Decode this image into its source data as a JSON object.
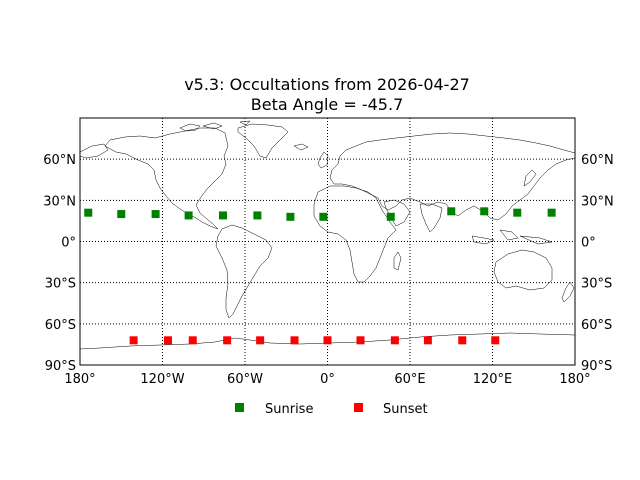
{
  "chart_data": {
    "type": "scatter",
    "title": "v5.3: Occultations from 2026-04-27",
    "subtitle": "Beta Angle = -45.7",
    "projection": "cylindrical",
    "xlim": [
      -180,
      180
    ],
    "ylim": [
      -90,
      90
    ],
    "grid": true,
    "grid_style": "dotted",
    "legend_position": "bottom-center",
    "x_ticks": [
      {
        "value": -180,
        "label": "180°"
      },
      {
        "value": -120,
        "label": "120°W"
      },
      {
        "value": -60,
        "label": "60°W"
      },
      {
        "value": 0,
        "label": "0°"
      },
      {
        "value": 60,
        "label": "60°E"
      },
      {
        "value": 120,
        "label": "120°E"
      },
      {
        "value": 180,
        "label": "180°"
      }
    ],
    "y_ticks": [
      {
        "value": 60,
        "label": "60°N"
      },
      {
        "value": 30,
        "label": "30°N"
      },
      {
        "value": 0,
        "label": "0°"
      },
      {
        "value": -30,
        "label": "30°S"
      },
      {
        "value": -60,
        "label": "60°S"
      },
      {
        "value": -90,
        "label": "90°S"
      }
    ],
    "series": [
      {
        "name": "Sunrise",
        "color": "#008000",
        "marker": "square",
        "points": [
          {
            "lon": -174,
            "lat": 21
          },
          {
            "lon": -150,
            "lat": 20
          },
          {
            "lon": -125,
            "lat": 20
          },
          {
            "lon": -101,
            "lat": 19
          },
          {
            "lon": -76,
            "lat": 19
          },
          {
            "lon": -51,
            "lat": 19
          },
          {
            "lon": -27,
            "lat": 18
          },
          {
            "lon": -3,
            "lat": 18
          },
          {
            "lon": 46,
            "lat": 18
          },
          {
            "lon": 90,
            "lat": 22
          },
          {
            "lon": 114,
            "lat": 22
          },
          {
            "lon": 138,
            "lat": 21
          },
          {
            "lon": 163,
            "lat": 21
          }
        ]
      },
      {
        "name": "Sunset",
        "color": "#ff0000",
        "marker": "square",
        "points": [
          {
            "lon": -141,
            "lat": -72
          },
          {
            "lon": -116,
            "lat": -72
          },
          {
            "lon": -98,
            "lat": -72
          },
          {
            "lon": -73,
            "lat": -72
          },
          {
            "lon": -49,
            "lat": -72
          },
          {
            "lon": -24,
            "lat": -72
          },
          {
            "lon": 0,
            "lat": -72
          },
          {
            "lon": 24,
            "lat": -72
          },
          {
            "lon": 49,
            "lat": -72
          },
          {
            "lon": 73,
            "lat": -72
          },
          {
            "lon": 98,
            "lat": -72
          },
          {
            "lon": 122,
            "lat": -72
          }
        ]
      }
    ]
  }
}
